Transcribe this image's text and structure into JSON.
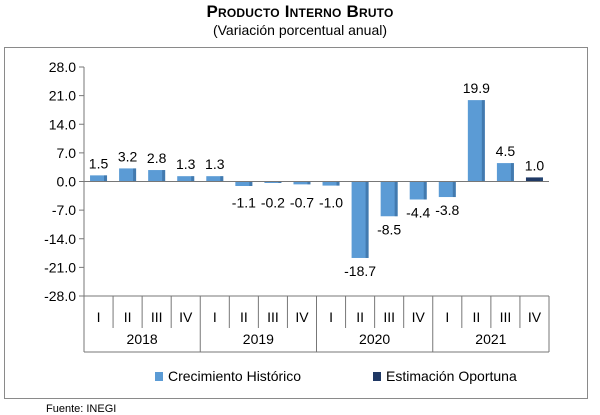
{
  "source_note": "Fuente: INEGI",
  "chart_data": {
    "type": "bar",
    "title": "Producto Interno Bruto",
    "subtitle": "(Variación porcentual anual)",
    "xlabel": "",
    "ylabel": "",
    "ylim": [
      -28,
      28
    ],
    "yticks": [
      "28.0",
      "21.0",
      "14.0",
      "7.0",
      "0.0",
      "-7.0",
      "-14.0",
      "-21.0",
      "-28.0"
    ],
    "ytick_values": [
      28,
      21,
      14,
      7,
      0,
      -7,
      -14,
      -21,
      -28
    ],
    "grid": false,
    "legend": "bottom",
    "years": [
      "2018",
      "2019",
      "2020",
      "2021"
    ],
    "quarters": [
      "I",
      "II",
      "III",
      "IV"
    ],
    "categories": [
      "I 2018",
      "II 2018",
      "III 2018",
      "IV 2018",
      "I 2019",
      "II 2019",
      "III 2019",
      "IV 2019",
      "I 2020",
      "II 2020",
      "III 2020",
      "IV 2020",
      "I 2021",
      "II 2021",
      "III 2021",
      "IV 2021"
    ],
    "series": [
      {
        "name": "Crecimiento  Histórico",
        "color": "#5b9bd5",
        "values": [
          1.5,
          3.2,
          2.8,
          1.3,
          1.3,
          -1.1,
          -0.2,
          -0.7,
          -1.0,
          -18.7,
          -8.5,
          -4.4,
          -3.8,
          19.9,
          4.5,
          null
        ]
      },
      {
        "name": "Estimación Oportuna",
        "color": "#1f3864",
        "values": [
          null,
          null,
          null,
          null,
          null,
          null,
          null,
          null,
          null,
          null,
          null,
          null,
          null,
          null,
          null,
          1.0
        ]
      }
    ],
    "data_labels": [
      "1.5",
      "3.2",
      "2.8",
      "1.3",
      "1.3",
      "-1.1",
      "-0.2",
      "-0.7",
      "-1.0",
      "-18.7",
      "-8.5",
      "-4.4",
      "-3.8",
      "19.9",
      "4.5",
      "1.0"
    ]
  }
}
